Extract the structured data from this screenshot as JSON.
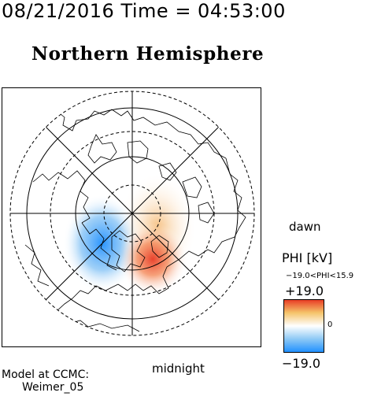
{
  "header": {
    "timestamp": "08/21/2016 Time = 04:53:00"
  },
  "map": {
    "title": "Northern Hemisphere",
    "dawn_label": "dawn",
    "midnight_label": "midnight"
  },
  "legend": {
    "title": "PHI [kV]",
    "range_text": "−19.0<PHI<15.9",
    "max_label": "+19.0",
    "min_label": "−19.0",
    "zero_label": "0",
    "colors": [
      "#1e8fff",
      "#8cc8f5",
      "#ffffff",
      "#f5c46a",
      "#e83a24"
    ]
  },
  "footer": {
    "model_label": "Model at CCMC:",
    "model_name": "Weimer_05"
  },
  "colors": {
    "potential_negative": "#2a8ff0",
    "potential_positive": "#e8402a",
    "potential_weak_positive": "#f3c878"
  }
}
